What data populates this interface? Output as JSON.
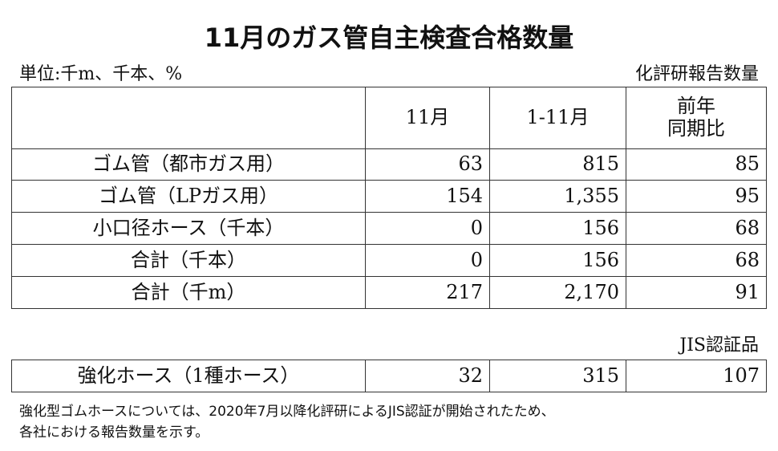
{
  "header": {
    "title": "11月のガス管自主検査合格数量",
    "unit": "単位:千m、千本、%",
    "source": "化評研報告数量"
  },
  "table": {
    "columns": [
      [
        "11月"
      ],
      [
        "1-11月"
      ],
      [
        "前年",
        "同期比"
      ]
    ],
    "rows": [
      [
        "ゴム管（都市ガス用）",
        "63",
        "815",
        "85"
      ],
      [
        "ゴム管（LPガス用）",
        "154",
        "1,355",
        "95"
      ],
      [
        "小口径ホース（千本）",
        "0",
        "156",
        "68"
      ],
      [
        "合計（千本）",
        "0",
        "156",
        "68"
      ],
      [
        "合計（千m）",
        "217",
        "2,170",
        "91"
      ]
    ]
  },
  "jis": {
    "label": "JIS認証品",
    "rows": [
      [
        "強化ホース（1種ホース）",
        "32",
        "315",
        "107"
      ]
    ]
  },
  "note": [
    "強化型ゴムホースについては、2020年7月以降化評研によるJIS認証が開始されたため、",
    "各社における報告数量を示す。"
  ]
}
